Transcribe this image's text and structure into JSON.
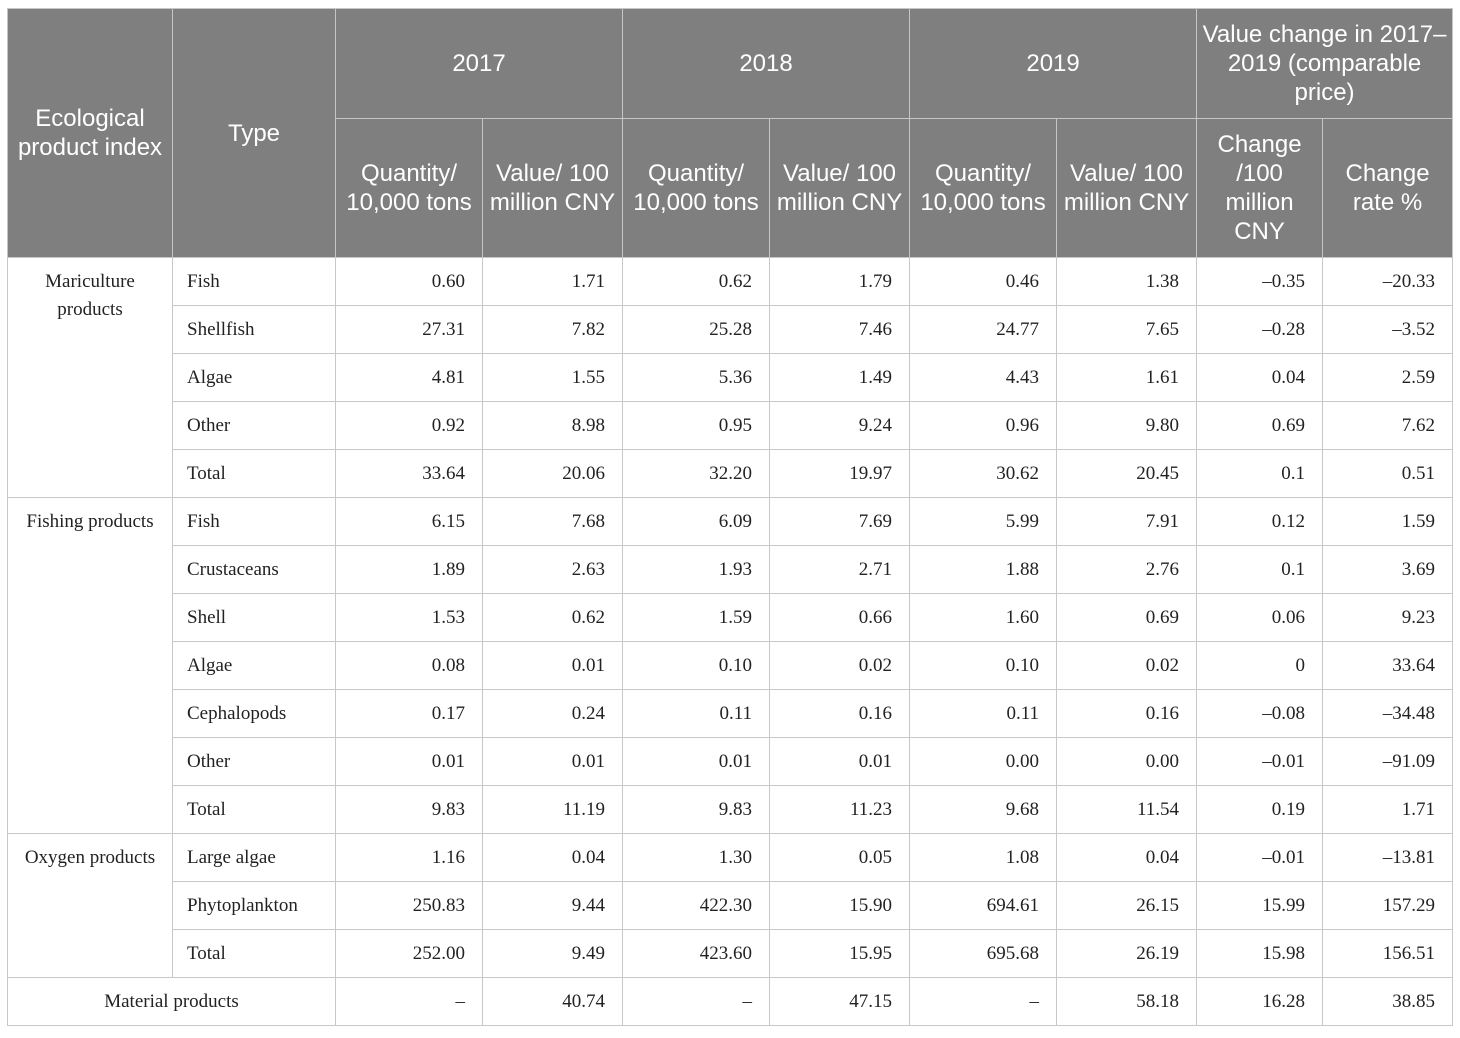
{
  "header": {
    "ecological_product_index": "Ecological product index",
    "type": "Type",
    "years": [
      "2017",
      "2018",
      "2019"
    ],
    "value_change": "Value change in 2017–2019 (comparable price)",
    "quantity": "Quantity/ 10,000 tons",
    "value": "Value/ 100 million CNY",
    "change": "Change /100 million CNY",
    "change_rate": "Change rate %"
  },
  "groups": [
    {
      "name": "Mariculture products",
      "rows": [
        {
          "type": "Fish",
          "values": [
            "0.60",
            "1.71",
            "0.62",
            "1.79",
            "0.46",
            "1.38",
            "–0.35",
            "–20.33"
          ]
        },
        {
          "type": "Shellfish",
          "values": [
            "27.31",
            "7.82",
            "25.28",
            "7.46",
            "24.77",
            "7.65",
            "–0.28",
            "–3.52"
          ]
        },
        {
          "type": "Algae",
          "values": [
            "4.81",
            "1.55",
            "5.36",
            "1.49",
            "4.43",
            "1.61",
            "0.04",
            "2.59"
          ]
        },
        {
          "type": "Other",
          "values": [
            "0.92",
            "8.98",
            "0.95",
            "9.24",
            "0.96",
            "9.80",
            "0.69",
            "7.62"
          ]
        },
        {
          "type": "Total",
          "values": [
            "33.64",
            "20.06",
            "32.20",
            "19.97",
            "30.62",
            "20.45",
            "0.1",
            "0.51"
          ]
        }
      ]
    },
    {
      "name": "Fishing products",
      "rows": [
        {
          "type": "Fish",
          "values": [
            "6.15",
            "7.68",
            "6.09",
            "7.69",
            "5.99",
            "7.91",
            "0.12",
            "1.59"
          ]
        },
        {
          "type": "Crustaceans",
          "values": [
            "1.89",
            "2.63",
            "1.93",
            "2.71",
            "1.88",
            "2.76",
            "0.1",
            "3.69"
          ]
        },
        {
          "type": "Shell",
          "values": [
            "1.53",
            "0.62",
            "1.59",
            "0.66",
            "1.60",
            "0.69",
            "0.06",
            "9.23"
          ]
        },
        {
          "type": "Algae",
          "values": [
            "0.08",
            "0.01",
            "0.10",
            "0.02",
            "0.10",
            "0.02",
            "0",
            "33.64"
          ]
        },
        {
          "type": "Cephalopods",
          "values": [
            "0.17",
            "0.24",
            "0.11",
            "0.16",
            "0.11",
            "0.16",
            "–0.08",
            "–34.48"
          ]
        },
        {
          "type": "Other",
          "values": [
            "0.01",
            "0.01",
            "0.01",
            "0.01",
            "0.00",
            "0.00",
            "–0.01",
            "–91.09"
          ]
        },
        {
          "type": "Total",
          "values": [
            "9.83",
            "11.19",
            "9.83",
            "11.23",
            "9.68",
            "11.54",
            "0.19",
            "1.71"
          ]
        }
      ]
    },
    {
      "name": "Oxygen products",
      "rows": [
        {
          "type": "Large algae",
          "values": [
            "1.16",
            "0.04",
            "1.30",
            "0.05",
            "1.08",
            "0.04",
            "–0.01",
            "–13.81"
          ]
        },
        {
          "type": "Phytoplankton",
          "values": [
            "250.83",
            "9.44",
            "422.30",
            "15.90",
            "694.61",
            "26.15",
            "15.99",
            "157.29"
          ]
        },
        {
          "type": "Total",
          "values": [
            "252.00",
            "9.49",
            "423.60",
            "15.95",
            "695.68",
            "26.19",
            "15.98",
            "156.51"
          ]
        }
      ]
    }
  ],
  "footer_row": {
    "label": "Material products",
    "values": [
      "–",
      "40.74",
      "–",
      "47.15",
      "–",
      "58.18",
      "16.28",
      "38.85"
    ]
  }
}
